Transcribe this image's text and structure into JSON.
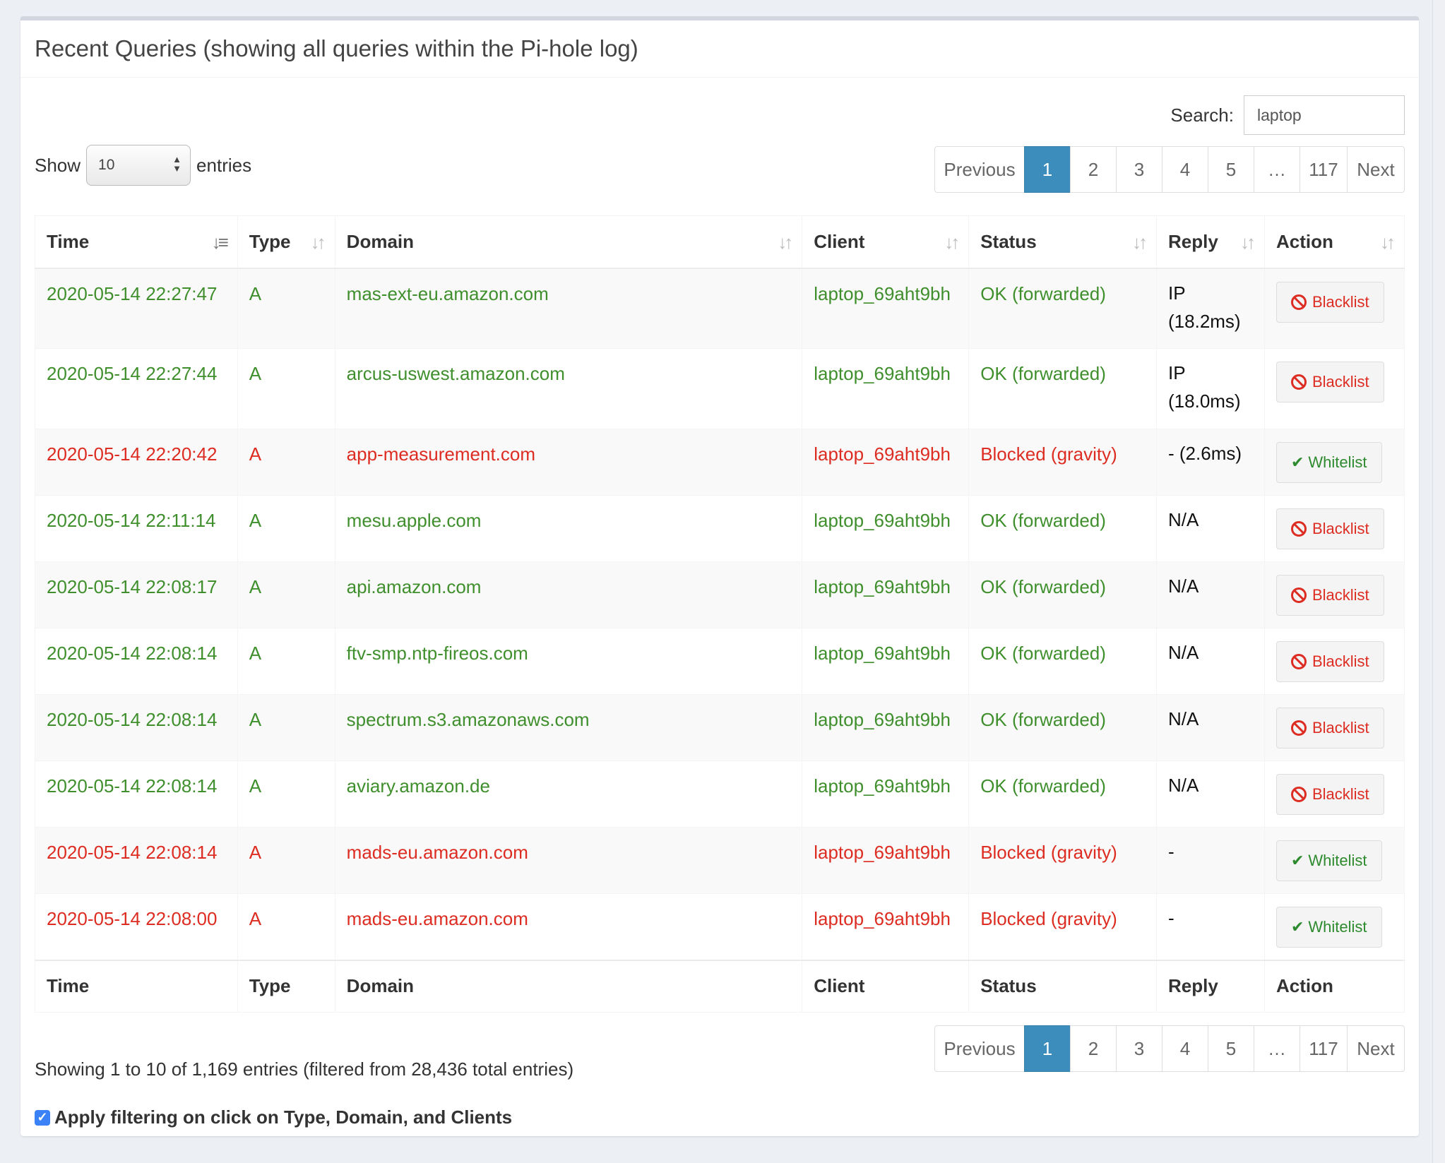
{
  "box": {
    "title": "Recent Queries (showing all queries within the Pi-hole log)"
  },
  "search": {
    "label": "Search:",
    "value": "laptop"
  },
  "length": {
    "show": "Show",
    "value": "10",
    "entries": "entries"
  },
  "pagination": {
    "previous": "Previous",
    "pages": [
      "1",
      "2",
      "3",
      "4",
      "5"
    ],
    "ellipsis": "…",
    "last": "117",
    "next": "Next",
    "current": "1"
  },
  "table": {
    "columns": [
      "Time",
      "Type",
      "Domain",
      "Client",
      "Status",
      "Reply",
      "Action"
    ],
    "rows": [
      {
        "time": "2020-05-14 22:27:47",
        "type": "A",
        "domain": "mas-ext-eu.amazon.com",
        "client": "laptop_69aht9bh",
        "status": "OK (forwarded)",
        "reply_line1": "IP",
        "reply_line2": "(18.2ms)",
        "action": "Blacklist"
      },
      {
        "time": "2020-05-14 22:27:44",
        "type": "A",
        "domain": "arcus-uswest.amazon.com",
        "client": "laptop_69aht9bh",
        "status": "OK (forwarded)",
        "reply_line1": "IP",
        "reply_line2": "(18.0ms)",
        "action": "Blacklist"
      },
      {
        "time": "2020-05-14 22:20:42",
        "type": "A",
        "domain": "app-measurement.com",
        "client": "laptop_69aht9bh",
        "status": "Blocked (gravity)",
        "reply_line1": "- (2.6ms)",
        "reply_line2": "",
        "action": "Whitelist"
      },
      {
        "time": "2020-05-14 22:11:14",
        "type": "A",
        "domain": "mesu.apple.com",
        "client": "laptop_69aht9bh",
        "status": "OK (forwarded)",
        "reply_line1": "N/A",
        "reply_line2": "",
        "action": "Blacklist"
      },
      {
        "time": "2020-05-14 22:08:17",
        "type": "A",
        "domain": "api.amazon.com",
        "client": "laptop_69aht9bh",
        "status": "OK (forwarded)",
        "reply_line1": "N/A",
        "reply_line2": "",
        "action": "Blacklist"
      },
      {
        "time": "2020-05-14 22:08:14",
        "type": "A",
        "domain": "ftv-smp.ntp-fireos.com",
        "client": "laptop_69aht9bh",
        "status": "OK (forwarded)",
        "reply_line1": "N/A",
        "reply_line2": "",
        "action": "Blacklist"
      },
      {
        "time": "2020-05-14 22:08:14",
        "type": "A",
        "domain": "spectrum.s3.amazonaws.com",
        "client": "laptop_69aht9bh",
        "status": "OK (forwarded)",
        "reply_line1": "N/A",
        "reply_line2": "",
        "action": "Blacklist"
      },
      {
        "time": "2020-05-14 22:08:14",
        "type": "A",
        "domain": "aviary.amazon.de",
        "client": "laptop_69aht9bh",
        "status": "OK (forwarded)",
        "reply_line1": "N/A",
        "reply_line2": "",
        "action": "Blacklist"
      },
      {
        "time": "2020-05-14 22:08:14",
        "type": "A",
        "domain": "mads-eu.amazon.com",
        "client": "laptop_69aht9bh",
        "status": "Blocked (gravity)",
        "reply_line1": "-",
        "reply_line2": "",
        "action": "Whitelist"
      },
      {
        "time": "2020-05-14 22:08:00",
        "type": "A",
        "domain": "mads-eu.amazon.com",
        "client": "laptop_69aht9bh",
        "status": "Blocked (gravity)",
        "reply_line1": "-",
        "reply_line2": "",
        "action": "Whitelist"
      }
    ]
  },
  "info": "Showing 1 to 10 of 1,169 entries (filtered from 28,436 total entries)",
  "filter_option": {
    "label": "Apply filtering on click on Type, Domain, and Clients",
    "checked": true
  },
  "icons": {
    "sort_desc": "sort-desc-icon",
    "sort": "sort-icon",
    "blacklist": "ban-icon",
    "whitelist": "check-icon"
  },
  "colors": {
    "ok": "#3f8f2d",
    "blocked": "#dd2c22",
    "active_page": "#3c8dbc",
    "header_border": "#d2d6de"
  }
}
